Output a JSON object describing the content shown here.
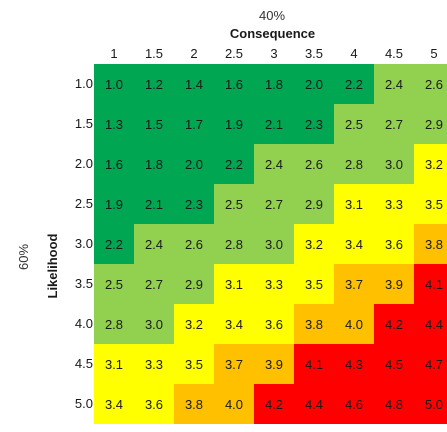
{
  "chart_data": {
    "type": "heatmap",
    "top_percent": "40%",
    "left_percent": "60%",
    "xlabel": "Consequence",
    "ylabel": "Likelihood",
    "x_ticks": [
      "1",
      "1.5",
      "2",
      "2.5",
      "3",
      "3.5",
      "4",
      "4.5",
      "5"
    ],
    "y_ticks": [
      "1.0",
      "1.5",
      "2.0",
      "2.5",
      "3.0",
      "3.5",
      "4.0",
      "4.5",
      "5.0"
    ],
    "values": [
      [
        "1.0",
        "1.2",
        "1.4",
        "1.6",
        "1.8",
        "2.0",
        "2.2",
        "2.4",
        "2.6"
      ],
      [
        "1.3",
        "1.5",
        "1.7",
        "1.9",
        "2.1",
        "2.3",
        "2.5",
        "2.7",
        "2.9"
      ],
      [
        "1.6",
        "1.8",
        "2.0",
        "2.2",
        "2.4",
        "2.6",
        "2.8",
        "3.0",
        "3.2"
      ],
      [
        "1.9",
        "2.1",
        "2.3",
        "2.5",
        "2.7",
        "2.9",
        "3.1",
        "3.3",
        "3.5"
      ],
      [
        "2.2",
        "2.4",
        "2.6",
        "2.8",
        "3.0",
        "3.2",
        "3.4",
        "3.6",
        "3.8"
      ],
      [
        "2.5",
        "2.7",
        "2.9",
        "3.1",
        "3.3",
        "3.5",
        "3.7",
        "3.9",
        "4.1"
      ],
      [
        "2.8",
        "3.0",
        "3.2",
        "3.4",
        "3.6",
        "3.8",
        "4.0",
        "4.2",
        "4.4"
      ],
      [
        "3.1",
        "3.3",
        "3.5",
        "3.7",
        "3.9",
        "4.1",
        "4.3",
        "4.5",
        "4.7"
      ],
      [
        "3.4",
        "3.6",
        "3.8",
        "4.0",
        "4.2",
        "4.4",
        "4.6",
        "4.8",
        "5.0"
      ]
    ],
    "color_bands": [
      {
        "max": 2.35,
        "color": "#00a651"
      },
      {
        "max": 3.05,
        "color": "#92d050"
      },
      {
        "max": 3.65,
        "color": "#ffff00"
      },
      {
        "max": 4.05,
        "color": "#ffc000"
      },
      {
        "max": 5.0,
        "color": "#ff0000"
      }
    ]
  }
}
